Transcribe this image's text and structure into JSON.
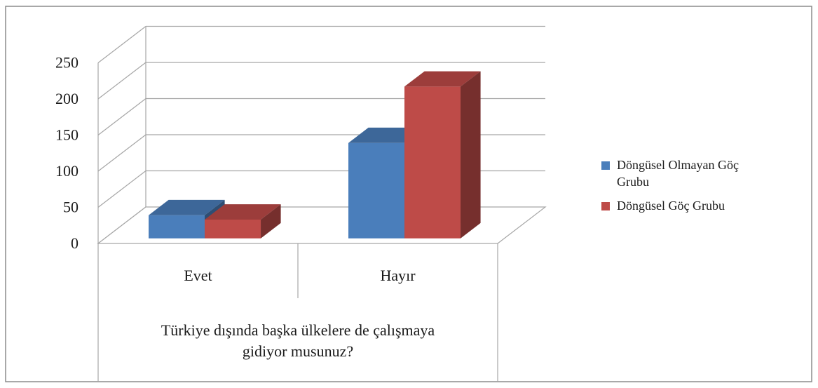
{
  "chart_data": {
    "type": "bar",
    "title": "",
    "xlabel": "Türkiye dışında başka ülkelere de çalışmaya gidiyor musunuz?",
    "xlabel_lines": [
      "Türkiye  dışında başka ülkelere  de çalışmaya",
      "gidiyor musunuz?"
    ],
    "ylabel": "",
    "categories": [
      "Evet",
      "Hayır"
    ],
    "ylim": [
      0,
      250
    ],
    "yticks": [
      0,
      50,
      100,
      150,
      200,
      250
    ],
    "grid": true,
    "three_d": true,
    "legend_position": "right",
    "series": [
      {
        "name": "Döngüsel Olmayan Göç Grubu",
        "legend_lines": [
          "Döngüsel Olmayan Göç",
          "Grubu"
        ],
        "color": "#4a7ebb",
        "values": [
          32,
          132
        ]
      },
      {
        "name": "Döngüsel Göç Grubu",
        "legend_lines": [
          "Döngüsel Göç Grubu"
        ],
        "color": "#be4b48",
        "values": [
          26,
          210
        ]
      }
    ]
  }
}
